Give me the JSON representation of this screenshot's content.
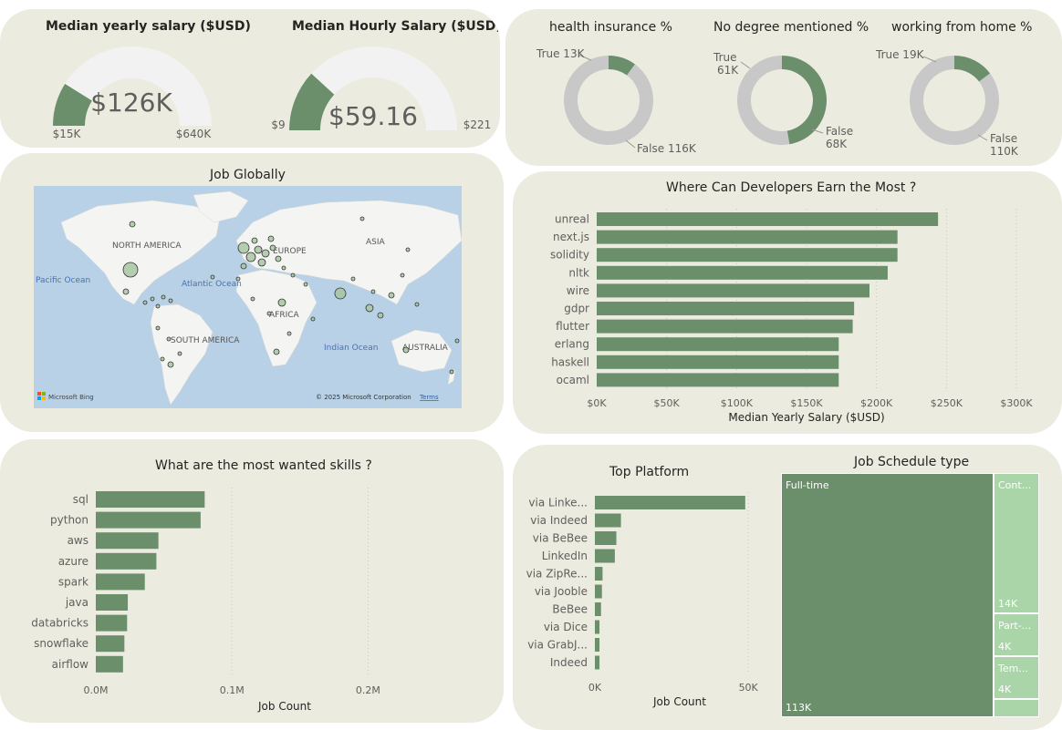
{
  "salary_cards": {
    "yearly": {
      "title": "Median yearly salary ($USD)",
      "value_label": "$126K",
      "min_label": "$15K",
      "max_label": "$640K"
    },
    "hourly": {
      "title": "Median Hourly Salary ($USD)",
      "value_label": "$59.16",
      "min_label": "$9",
      "max_label": "$221"
    }
  },
  "donut_cards": {
    "health": {
      "title": "health insurance %",
      "true_label": "True 13K",
      "false_label": "False 116K"
    },
    "degree": {
      "title": "No degree mentioned %",
      "true_label_1": "True",
      "true_label_2": "61K",
      "false_label_1": "False",
      "false_label_2": "68K"
    },
    "wfh": {
      "title": "working from home %",
      "true_label": "True 19K",
      "false_label_1": "False",
      "false_label_2": "110K"
    }
  },
  "map": {
    "title": "Job Globally",
    "labels": {
      "north_america": "NORTH AMERICA",
      "europe": "EUROPE",
      "asia": "ASIA",
      "africa": "AFRICA",
      "south_america": "SOUTH AMERICA",
      "australia": "AUSTRALIA"
    },
    "oceans": {
      "pacific": "Pacific Ocean",
      "atlantic": "Atlantic Ocean",
      "indian": "Indian Ocean"
    },
    "logo": "Microsoft Bing",
    "copyright": "© 2025 Microsoft Corporation",
    "terms": "Terms"
  },
  "treemap_data": {
    "title": "Job Schedule type",
    "items": [
      {
        "name": "Full-time",
        "value_label": "113K"
      },
      {
        "name": "Cont...",
        "value_label": "14K"
      },
      {
        "name": "Part-...",
        "value_label": "4K"
      },
      {
        "name": "Tem...",
        "value_label": "4K"
      }
    ]
  },
  "colors": {
    "card_bg": "#ecebdf",
    "bar": "#6b8e6b",
    "bar_light": "#a9d5a9",
    "gauge_bg": "#f2f2f2",
    "donut_grey": "#c8c8c8"
  },
  "chart_data": [
    {
      "id": "yearly_gauge",
      "type": "gauge",
      "title": "Median yearly salary ($USD)",
      "value": 126000,
      "min": 15000,
      "max": 640000
    },
    {
      "id": "hourly_gauge",
      "type": "gauge",
      "title": "Median Hourly Salary ($USD)",
      "value": 59.16,
      "min": 9,
      "max": 221
    },
    {
      "id": "health_donut",
      "type": "pie",
      "title": "health insurance %",
      "categories": [
        "True",
        "False"
      ],
      "values": [
        13000,
        116000
      ]
    },
    {
      "id": "degree_donut",
      "type": "pie",
      "title": "No degree mentioned %",
      "categories": [
        "True",
        "False"
      ],
      "values": [
        61000,
        68000
      ]
    },
    {
      "id": "wfh_donut",
      "type": "pie",
      "title": "working from home %",
      "categories": [
        "True",
        "False"
      ],
      "values": [
        19000,
        110000
      ]
    },
    {
      "id": "earn_most",
      "type": "bar",
      "title": "Where Can Developers Earn the Most ?",
      "xlabel": "Median Yearly Salary ($USD)",
      "ylabel": "",
      "categories": [
        "unreal",
        "next.js",
        "solidity",
        "nltk",
        "wire",
        "gdpr",
        "flutter",
        "erlang",
        "haskell",
        "ocaml"
      ],
      "values": [
        244000,
        215000,
        215000,
        208000,
        195000,
        184000,
        183000,
        173000,
        173000,
        173000
      ],
      "xlim": [
        0,
        300000
      ],
      "ticks": [
        0,
        50000,
        100000,
        150000,
        200000,
        250000,
        300000
      ],
      "tick_labels": [
        "$0K",
        "$50K",
        "$100K",
        "$150K",
        "$200K",
        "$250K",
        "$300K"
      ]
    },
    {
      "id": "wanted_skills",
      "type": "bar",
      "title": "What are the most wanted skills ?",
      "xlabel": "Job Count",
      "ylabel": "",
      "categories": [
        "sql",
        "python",
        "aws",
        "azure",
        "spark",
        "java",
        "databricks",
        "snowflake",
        "airflow"
      ],
      "values": [
        80000,
        77000,
        46000,
        44500,
        36000,
        23500,
        23000,
        21000,
        20000
      ],
      "xlim": [
        0,
        250000
      ],
      "ticks": [
        0,
        100000,
        200000
      ],
      "tick_labels": [
        "0.0M",
        "0.1M",
        "0.2M"
      ]
    },
    {
      "id": "top_platform",
      "type": "bar",
      "title": "Top Platform",
      "xlabel": "Job Count",
      "ylabel": "",
      "categories": [
        "via Linke...",
        "via Indeed",
        "via BeBee",
        "LinkedIn",
        "via ZipRe...",
        "via Jooble",
        "BeBee",
        "via Dice",
        "via GrabJ...",
        "Indeed"
      ],
      "values": [
        49000,
        8500,
        7000,
        6500,
        2500,
        2300,
        2000,
        1500,
        1500,
        1500
      ],
      "xlim": [
        0,
        55000
      ],
      "ticks": [
        0,
        50000
      ],
      "tick_labels": [
        "0K",
        "50K"
      ]
    },
    {
      "id": "schedule_type",
      "type": "treemap",
      "title": "Job Schedule type",
      "categories": [
        "Full-time",
        "Cont...",
        "Part-...",
        "Tem..."
      ],
      "values": [
        113000,
        14000,
        4000,
        4000
      ]
    }
  ]
}
